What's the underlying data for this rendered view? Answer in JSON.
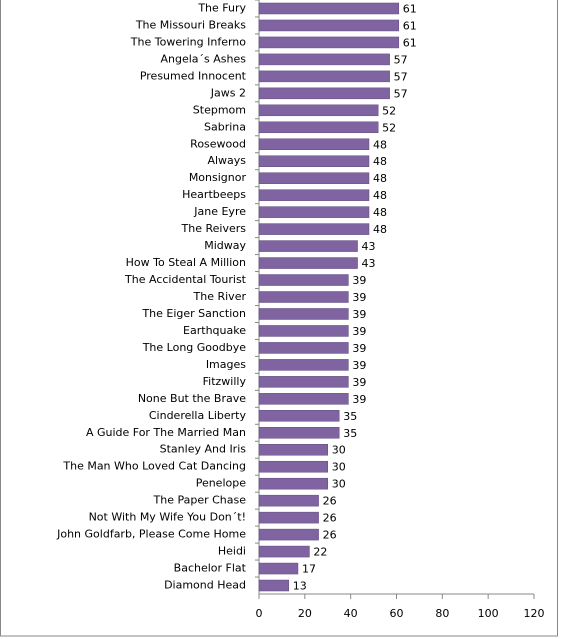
{
  "chart_data": {
    "type": "bar",
    "orientation": "horizontal",
    "categories": [
      "The Fury",
      "The Missouri Breaks",
      "The Towering Inferno",
      "Angela´s Ashes",
      "Presumed Innocent",
      "Jaws 2",
      "Stepmom",
      "Sabrina",
      "Rosewood",
      "Always",
      "Monsignor",
      "Heartbeeps",
      "Jane Eyre",
      "The Reivers",
      "Midway",
      "How To Steal A Million",
      "The Accidental Tourist",
      "The River",
      "The Eiger Sanction",
      "Earthquake",
      "The Long Goodbye",
      "Images",
      "Fitzwilly",
      "None But the Brave",
      "Cinderella Liberty",
      "A Guide For The Married Man",
      "Stanley And Iris",
      "The Man Who Loved Cat Dancing",
      "Penelope",
      "The Paper Chase",
      "Not With My Wife You Don´t!",
      "John Goldfarb, Please Come Home",
      "Heidi",
      "Bachelor Flat",
      "Diamond Head"
    ],
    "values": [
      61,
      61,
      61,
      57,
      57,
      57,
      52,
      52,
      48,
      48,
      48,
      48,
      48,
      48,
      43,
      43,
      39,
      39,
      39,
      39,
      39,
      39,
      39,
      39,
      35,
      35,
      30,
      30,
      30,
      26,
      26,
      26,
      22,
      17,
      13
    ],
    "color": "#8064a2",
    "xlim": [
      0,
      120
    ],
    "xticks": [
      0,
      20,
      40,
      60,
      80,
      100,
      120
    ],
    "grid": false
  }
}
